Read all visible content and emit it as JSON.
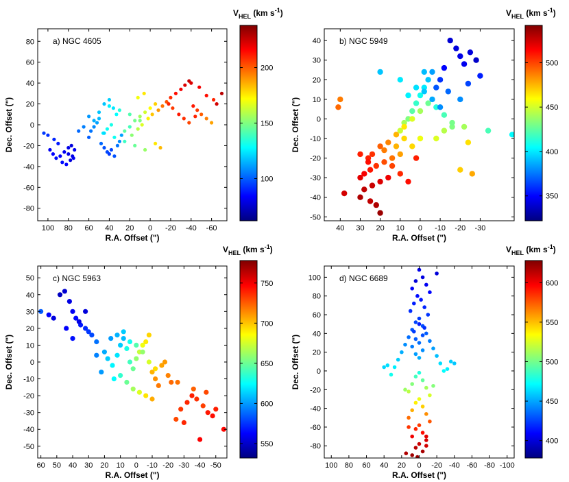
{
  "chart_data": [
    {
      "type": "scatter",
      "title": "a) NGC 4605",
      "xlabel": "R.A. Offset (\")",
      "ylabel": "Dec. Offset (\")",
      "xlim": [
        110,
        -75
      ],
      "ylim": [
        -92,
        92
      ],
      "xticks": [
        100,
        80,
        60,
        40,
        20,
        0,
        -20,
        -40,
        -60
      ],
      "yticks": [
        80,
        60,
        40,
        20,
        0,
        -20,
        -40,
        -60,
        -80
      ],
      "colorbar": {
        "label": "V_HEL (km s^-1)",
        "label_main": "V",
        "label_sub": "HEL",
        "label_units": "(km s",
        "label_exp": "-1",
        "label_close": ")",
        "vmin": 62,
        "vmax": 238,
        "ticks": [
          100,
          150,
          200
        ]
      },
      "points_x": [
        98,
        95,
        92,
        88,
        84,
        80,
        78,
        76,
        74,
        86,
        82,
        80,
        77,
        75,
        90,
        94,
        100,
        104,
        60,
        58,
        55,
        52,
        50,
        48,
        45,
        42,
        40,
        38,
        35,
        32,
        30,
        28,
        45,
        40,
        36,
        33,
        38,
        42,
        46,
        20,
        15,
        10,
        5,
        0,
        -5,
        25,
        18,
        12,
        8,
        2,
        -2,
        -8,
        -12,
        -16,
        -20,
        -25,
        -30,
        -34,
        -38,
        -42,
        -46,
        -50,
        -55,
        -60,
        -65,
        -70,
        -28,
        -33,
        -38,
        -44,
        -22,
        -18,
        -40,
        -48,
        -55,
        -62,
        60,
        50,
        40,
        30,
        20,
        10,
        55,
        45,
        35,
        25,
        15,
        5,
        65,
        70,
        -5,
        -10,
        12,
        6
      ],
      "points_y": [
        -24,
        -28,
        -32,
        -30,
        -26,
        -28,
        -34,
        -30,
        -24,
        -36,
        -38,
        -22,
        -20,
        -32,
        -18,
        -14,
        -10,
        -8,
        -12,
        -6,
        -2,
        2,
        6,
        -18,
        -22,
        -26,
        -28,
        -24,
        -30,
        -20,
        -16,
        -10,
        20,
        24,
        16,
        10,
        0,
        -4,
        -8,
        -2,
        4,
        8,
        12,
        16,
        20,
        -6,
        -10,
        -4,
        0,
        6,
        10,
        14,
        18,
        22,
        26,
        30,
        34,
        38,
        42,
        18,
        14,
        10,
        6,
        2,
        20,
        30,
        10,
        6,
        2,
        8,
        16,
        20,
        40,
        36,
        28,
        24,
        8,
        12,
        18,
        14,
        10,
        4,
        4,
        -8,
        -12,
        -16,
        -20,
        -24,
        -2,
        -6,
        -18,
        -22,
        26,
        30
      ],
      "points_v": [
        82,
        84,
        86,
        84,
        82,
        80,
        78,
        80,
        82,
        86,
        84,
        80,
        78,
        82,
        88,
        90,
        92,
        94,
        100,
        104,
        108,
        112,
        116,
        102,
        98,
        96,
        94,
        96,
        98,
        104,
        108,
        112,
        118,
        120,
        124,
        128,
        132,
        130,
        126,
        140,
        148,
        156,
        164,
        172,
        180,
        144,
        152,
        160,
        166,
        174,
        182,
        190,
        196,
        202,
        208,
        214,
        218,
        222,
        226,
        212,
        206,
        200,
        194,
        188,
        224,
        228,
        212,
        208,
        204,
        210,
        206,
        210,
        222,
        218,
        214,
        210,
        110,
        118,
        126,
        134,
        142,
        150,
        114,
        122,
        130,
        138,
        146,
        154,
        106,
        102,
        176,
        184,
        170,
        176
      ]
    },
    {
      "type": "scatter",
      "title": "b) NGC 5949",
      "xlabel": "R.A. Offset (\")",
      "ylabel": "Dec. Offset (\")",
      "xlim": [
        48,
        -47
      ],
      "ylim": [
        -52,
        46
      ],
      "xticks": [
        40,
        30,
        20,
        10,
        0,
        -10,
        -20,
        -30
      ],
      "yticks": [
        40,
        30,
        20,
        10,
        0,
        -10,
        -20,
        -30,
        -40,
        -50
      ],
      "colorbar": {
        "label": "V_HEL (km s^-1)",
        "label_main": "V",
        "label_sub": "HEL",
        "label_units": "(km s",
        "label_exp": "-1",
        "label_close": ")",
        "vmin": 322,
        "vmax": 542,
        "ticks": [
          350,
          400,
          450,
          500
        ]
      },
      "points_x": [
        -15,
        -18,
        -20,
        -22,
        -25,
        -28,
        -12,
        -10,
        -8,
        -14,
        -20,
        -24,
        -30,
        -6,
        -4,
        -2,
        0,
        2,
        4,
        6,
        8,
        10,
        -8,
        -12,
        -16,
        0,
        4,
        10,
        14,
        18,
        22,
        25,
        28,
        30,
        16,
        12,
        8,
        4,
        0,
        -4,
        20,
        24,
        26,
        14,
        10,
        6,
        2,
        16,
        20,
        24,
        28,
        30,
        18,
        12,
        8,
        40,
        41,
        38,
        25,
        22,
        20,
        10,
        -2,
        -6,
        -10,
        -16,
        -22,
        -34,
        -46,
        30,
        26,
        6,
        2,
        -2,
        -20,
        -12,
        -8,
        -24,
        -26,
        20
      ],
      "points_y": [
        40,
        36,
        32,
        28,
        34,
        30,
        26,
        20,
        16,
        14,
        10,
        18,
        22,
        24,
        20,
        16,
        12,
        8,
        4,
        0,
        -2,
        -6,
        6,
        2,
        -4,
        -10,
        -14,
        -18,
        -20,
        -22,
        -24,
        -26,
        -28,
        -30,
        -12,
        -8,
        -4,
        0,
        4,
        8,
        -14,
        -18,
        -20,
        -24,
        -28,
        -32,
        -20,
        -30,
        -32,
        -34,
        -36,
        -40,
        -16,
        -14,
        -10,
        10,
        6,
        -38,
        -42,
        -44,
        -48,
        20,
        14,
        10,
        6,
        -2,
        -4,
        -6,
        -8,
        -18,
        -22,
        12,
        16,
        24,
        -26,
        -6,
        -10,
        -12,
        -28,
        24
      ],
      "points_v": [
        340,
        342,
        344,
        346,
        342,
        338,
        350,
        360,
        368,
        372,
        380,
        364,
        356,
        384,
        392,
        400,
        408,
        416,
        424,
        432,
        440,
        448,
        412,
        420,
        432,
        456,
        468,
        480,
        490,
        498,
        504,
        510,
        516,
        520,
        486,
        476,
        464,
        452,
        440,
        428,
        494,
        504,
        508,
        500,
        506,
        512,
        508,
        518,
        522,
        526,
        528,
        532,
        488,
        476,
        468,
        488,
        492,
        524,
        528,
        532,
        536,
        400,
        392,
        386,
        380,
        430,
        440,
        420,
        404,
        508,
        512,
        402,
        398,
        390,
        470,
        444,
        452,
        466,
        478,
        392
      ]
    },
    {
      "type": "scatter",
      "title": "c) NGC 5963",
      "xlabel": "R.A. Offset (\")",
      "ylabel": "Dec. Offset (\")",
      "xlim": [
        62,
        -57
      ],
      "ylim": [
        -57,
        57
      ],
      "xticks": [
        60,
        50,
        40,
        30,
        20,
        10,
        0,
        -10,
        -20,
        -30,
        -40,
        -50
      ],
      "yticks": [
        50,
        40,
        30,
        20,
        10,
        0,
        -10,
        -20,
        -30,
        -40,
        -50
      ],
      "colorbar": {
        "label": "V_HEL (km s^-1)",
        "label_main": "V",
        "label_sub": "HEL",
        "label_units": "(km s",
        "label_exp": "-1",
        "label_close": ")",
        "vmin": 532,
        "vmax": 778,
        "ticks": [
          550,
          600,
          650,
          700,
          750
        ]
      },
      "points_x": [
        60,
        55,
        52,
        48,
        45,
        42,
        40,
        38,
        35,
        32,
        30,
        28,
        25,
        44,
        40,
        36,
        32,
        20,
        18,
        15,
        12,
        10,
        8,
        6,
        4,
        2,
        0,
        -2,
        -4,
        -6,
        -8,
        -10,
        -12,
        -14,
        -16,
        -18,
        -20,
        -22,
        14,
        10,
        6,
        2,
        -2,
        -6,
        -10,
        16,
        12,
        8,
        4,
        0,
        -4,
        -8,
        -12,
        -25,
        -28,
        -32,
        -35,
        -38,
        -42,
        -45,
        -48,
        -50,
        -55,
        -40,
        -30,
        -36,
        -44,
        -26,
        25,
        22
      ],
      "points_y": [
        30,
        28,
        26,
        40,
        42,
        36,
        30,
        26,
        22,
        20,
        18,
        16,
        12,
        20,
        14,
        24,
        30,
        6,
        2,
        -2,
        4,
        10,
        14,
        8,
        0,
        -4,
        2,
        6,
        10,
        12,
        16,
        -6,
        -10,
        -14,
        -2,
        0,
        -8,
        -12,
        -10,
        -8,
        -12,
        -16,
        -18,
        -20,
        -22,
        14,
        16,
        18,
        12,
        10,
        6,
        0,
        -4,
        -34,
        -28,
        -24,
        -20,
        -22,
        -26,
        -30,
        -32,
        -28,
        -40,
        -46,
        -36,
        -16,
        -18,
        -12,
        4,
        -6
      ],
      "points_v": [
        585,
        562,
        555,
        548,
        552,
        556,
        560,
        564,
        568,
        572,
        576,
        580,
        590,
        562,
        566,
        556,
        554,
        604,
        612,
        622,
        618,
        612,
        608,
        630,
        640,
        650,
        660,
        672,
        682,
        690,
        696,
        704,
        712,
        718,
        708,
        710,
        716,
        722,
        624,
        636,
        650,
        664,
        678,
        692,
        706,
        600,
        606,
        612,
        628,
        644,
        660,
        676,
        694,
        730,
        734,
        738,
        740,
        736,
        732,
        742,
        744,
        740,
        746,
        748,
        738,
        724,
        730,
        720,
        594,
        600
      ]
    },
    {
      "type": "scatter",
      "title": "d) NGC 6689",
      "xlabel": "R.A. Offset (\")",
      "ylabel": "Dec. Offset (\")",
      "xlim": [
        108,
        -108
      ],
      "ylim": [
        -93,
        112
      ],
      "xticks": [
        100,
        80,
        60,
        40,
        20,
        0,
        -20,
        -40,
        -60,
        -80,
        -100
      ],
      "yticks": [
        100,
        80,
        60,
        40,
        20,
        0,
        -20,
        -40,
        -60,
        -80
      ],
      "colorbar": {
        "label": "V_HEL (km s^-1)",
        "label_main": "V",
        "label_sub": "HEL",
        "label_units": "(km s",
        "label_exp": "-1",
        "label_close": ")",
        "vmin": 378,
        "vmax": 628,
        "ticks": [
          400,
          450,
          500,
          550,
          600
        ]
      },
      "points_x": [
        0,
        -4,
        4,
        -8,
        8,
        -12,
        2,
        -2,
        6,
        -6,
        10,
        -10,
        0,
        4,
        -4,
        8,
        -8,
        12,
        -12,
        16,
        -16,
        20,
        -20,
        24,
        -24,
        28,
        -28,
        32,
        -32,
        36,
        -36,
        40,
        -40,
        0,
        4,
        -4,
        8,
        -8,
        12,
        -12,
        16,
        -16,
        0,
        4,
        -4,
        8,
        -8,
        12,
        -12,
        0,
        4,
        -4,
        8,
        -8,
        12,
        0,
        4,
        -4,
        8,
        -8,
        0,
        4,
        -4,
        8,
        0,
        4,
        -4,
        6,
        -6,
        0,
        -20,
        15,
        2,
        -8
      ],
      "points_y": [
        108,
        100,
        96,
        92,
        88,
        84,
        80,
        76,
        72,
        68,
        64,
        60,
        56,
        52,
        48,
        44,
        40,
        36,
        32,
        28,
        24,
        20,
        16,
        12,
        8,
        4,
        0,
        -4,
        2,
        6,
        10,
        4,
        8,
        -2,
        -6,
        -10,
        -14,
        -18,
        -22,
        -26,
        -20,
        -16,
        -30,
        -34,
        -38,
        -42,
        -46,
        -50,
        -54,
        -58,
        -62,
        -66,
        -70,
        -74,
        -60,
        -78,
        -82,
        -86,
        -90,
        -70,
        14,
        18,
        22,
        26,
        30,
        34,
        38,
        42,
        46,
        50,
        104,
        -88,
        -92,
        -80
      ],
      "points_v": [
        404,
        402,
        400,
        406,
        408,
        410,
        412,
        414,
        416,
        418,
        420,
        422,
        424,
        426,
        428,
        430,
        432,
        436,
        440,
        444,
        448,
        452,
        456,
        460,
        464,
        468,
        472,
        476,
        468,
        464,
        460,
        462,
        458,
        480,
        488,
        496,
        504,
        512,
        518,
        524,
        510,
        504,
        530,
        538,
        546,
        554,
        562,
        570,
        576,
        582,
        588,
        594,
        600,
        606,
        584,
        610,
        614,
        618,
        620,
        604,
        452,
        448,
        444,
        440,
        436,
        432,
        428,
        424,
        420,
        416,
        400,
        616,
        622,
        608
      ]
    }
  ]
}
